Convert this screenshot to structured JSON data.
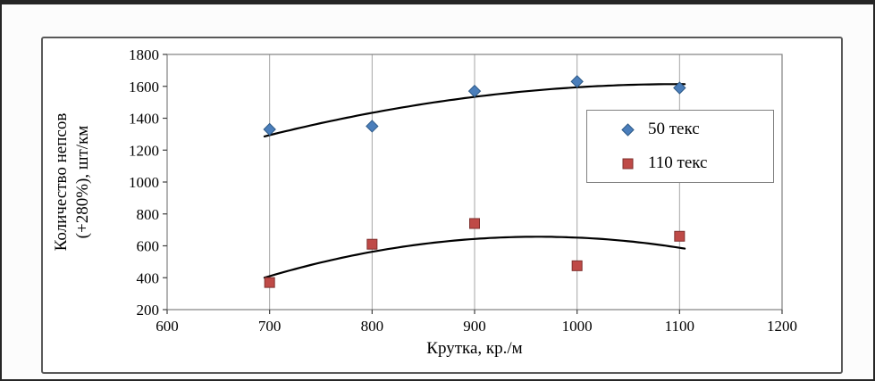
{
  "chart_data": {
    "type": "scatter",
    "title": "",
    "xlabel": "Крутка, кр./м",
    "ylabel": "Количество непсов (+280%), шт/км",
    "ylabel_lines": [
      "Количество непсов",
      "(+280%), шт/км"
    ],
    "xlim": [
      600,
      1200
    ],
    "ylim": [
      200,
      1800
    ],
    "x_ticks": [
      600,
      700,
      800,
      900,
      1000,
      1100,
      1200
    ],
    "y_ticks": [
      200,
      400,
      600,
      800,
      1000,
      1200,
      1400,
      1600,
      1800
    ],
    "grid": {
      "vertical": true,
      "horizontal": false
    },
    "legend": {
      "position": "inside-top-right"
    },
    "series": [
      {
        "name": "50 текс",
        "marker": "diamond",
        "color": "#4a7ebb",
        "border_color": "#2e5a87",
        "x": [
          700,
          800,
          900,
          1000,
          1100
        ],
        "y": [
          1330,
          1350,
          1570,
          1630,
          1590
        ],
        "trendline": {
          "type": "polynomial",
          "order": 2,
          "color": "#000000"
        }
      },
      {
        "name": "110 текс",
        "marker": "square",
        "color": "#bf4a47",
        "border_color": "#7f302e",
        "x": [
          700,
          800,
          900,
          1000,
          1100
        ],
        "y": [
          370,
          610,
          740,
          475,
          660
        ],
        "trendline": {
          "type": "polynomial",
          "order": 2,
          "color": "#000000"
        }
      }
    ],
    "colors": {
      "gridline": "#a6a6a6",
      "plot_border": "#808080",
      "tick": "#404040",
      "trend": "#000000"
    }
  }
}
